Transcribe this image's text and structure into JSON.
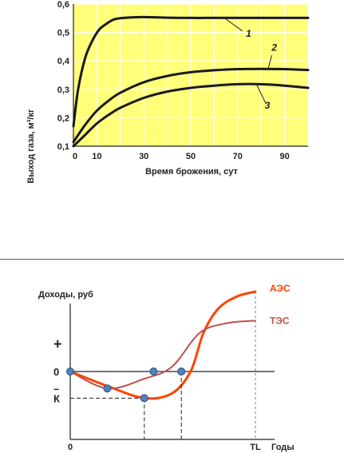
{
  "chart_data": [
    {
      "type": "line",
      "title": "",
      "xlabel": "Время брожения, сут",
      "ylabel": "Выход газа, м³/кг",
      "xlim": [
        0,
        100
      ],
      "ylim": [
        0.1,
        0.6
      ],
      "x_ticks": [
        0,
        10,
        30,
        50,
        70,
        90
      ],
      "x_tick_labels": [
        "0",
        "10",
        "30",
        "50",
        "70",
        "90"
      ],
      "y_ticks": [
        0.1,
        0.2,
        0.3,
        0.4,
        0.5,
        0.6
      ],
      "y_tick_labels": [
        "0,1",
        "0,2",
        "0,3",
        "0,4",
        "0,5",
        "0,6"
      ],
      "grid": true,
      "background_color": "#ffff7a",
      "line_color": "#1a1a1a",
      "series": [
        {
          "name": "1",
          "x": [
            0,
            2,
            5,
            8,
            11,
            14,
            17,
            20,
            25,
            30,
            40,
            50,
            60,
            70,
            80,
            90,
            100
          ],
          "y": [
            0.17,
            0.3,
            0.41,
            0.47,
            0.51,
            0.53,
            0.545,
            0.55,
            0.553,
            0.554,
            0.552,
            0.551,
            0.551,
            0.551,
            0.551,
            0.551,
            0.551
          ]
        },
        {
          "name": "2",
          "x": [
            0,
            5,
            10,
            15,
            20,
            30,
            40,
            50,
            60,
            70,
            80,
            90,
            100
          ],
          "y": [
            0.115,
            0.175,
            0.225,
            0.26,
            0.288,
            0.325,
            0.347,
            0.36,
            0.367,
            0.371,
            0.372,
            0.371,
            0.368
          ]
        },
        {
          "name": "3",
          "x": [
            0,
            5,
            10,
            15,
            20,
            30,
            40,
            50,
            60,
            70,
            80,
            90,
            100
          ],
          "y": [
            0.1,
            0.14,
            0.18,
            0.21,
            0.235,
            0.27,
            0.292,
            0.305,
            0.313,
            0.318,
            0.318,
            0.313,
            0.305
          ]
        }
      ],
      "series_labels": [
        "1",
        "2",
        "3"
      ]
    },
    {
      "type": "line",
      "title": "",
      "ylabel": "Доходы, руб",
      "xlabel": "Годы",
      "x_tick_labels": [
        "0",
        "TL"
      ],
      "y_tick_labels": [
        "+",
        "0",
        "–",
        "К"
      ],
      "grid": false,
      "series": [
        {
          "name": "АЭС",
          "color": "#ff4400",
          "t": [
            0,
            0.2,
            0.4,
            0.55,
            0.65,
            0.72,
            0.8,
            0.9,
            1
          ],
          "y": [
            0,
            -0.3,
            -0.55,
            -0.45,
            0,
            0.8,
            1.3,
            1.55,
            1.65
          ]
        },
        {
          "name": "ТЭС",
          "color": "#c0504d",
          "t": [
            0,
            0.2,
            0.4,
            0.55,
            0.7,
            0.85,
            1
          ],
          "y": [
            0,
            -0.35,
            -0.15,
            0.1,
            0.8,
            1.0,
            1.05
          ]
        }
      ]
    }
  ]
}
